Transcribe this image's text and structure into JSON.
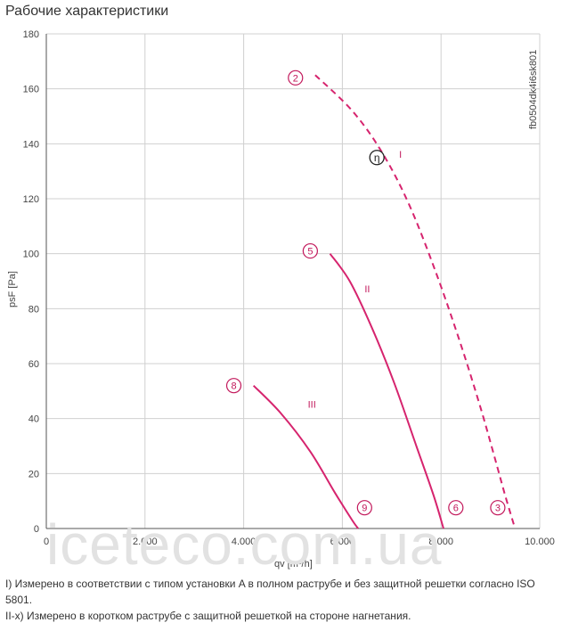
{
  "page_title": "Рабочие характеристики",
  "doc_code": "fb0504dk4i6sk801",
  "watermark": "iceteco.com.ua",
  "notes": [
    "I) Измерено в соответствии с типом установки A в полном раструбе и без защитной решетки согласно ISO 5801.",
    "II-x) Измерено в коротком раструбе с защитной решеткой на стороне нагнетания."
  ],
  "colors": {
    "curve": "#d6246e",
    "marker": "#c2185b",
    "grid": "#d0d0d0",
    "axis": "#555555"
  },
  "chart_data": {
    "type": "line",
    "title": "Рабочие характеристики",
    "xlabel": "qv [m³/h]",
    "ylabel": "psF [Pa]",
    "xlim": [
      0,
      10000
    ],
    "ylim": [
      0,
      180
    ],
    "x_ticks": [
      0,
      2000,
      4000,
      6000,
      8000,
      10000
    ],
    "x_tick_labels": [
      "0",
      "2.000",
      "4.000",
      "6.000",
      "8.000",
      "10.000"
    ],
    "y_ticks": [
      0,
      20,
      40,
      60,
      80,
      100,
      120,
      140,
      160,
      180
    ],
    "y_tick_labels": [
      "0",
      "20",
      "40",
      "60",
      "80",
      "100",
      "120",
      "140",
      "160",
      "180"
    ],
    "grid": true,
    "series": [
      {
        "name": "I",
        "style": "dashed",
        "x": [
          5450,
          6200,
          6800,
          7350,
          7900,
          8400,
          8800,
          9100,
          9300,
          9500
        ],
        "y": [
          165,
          152,
          137,
          118,
          93,
          67,
          44,
          25,
          12,
          0
        ],
        "label_at": [
          7150,
          135
        ],
        "start_marker": "2",
        "end_marker": "3",
        "efficiency_marker": {
          "symbol": "η",
          "x": 6700,
          "y": 135
        }
      },
      {
        "name": "II",
        "style": "solid",
        "x": [
          5750,
          6150,
          6600,
          7050,
          7500,
          7850,
          8050
        ],
        "y": [
          100,
          90,
          73,
          53,
          30,
          12,
          0
        ],
        "label_at": [
          6450,
          86
        ],
        "start_marker": "5",
        "end_marker": "6"
      },
      {
        "name": "III",
        "style": "solid",
        "x": [
          4200,
          4750,
          5350,
          5850,
          6200,
          6320
        ],
        "y": [
          52,
          42,
          28,
          13,
          3,
          0
        ],
        "label_at": [
          5300,
          44
        ],
        "start_marker": "8",
        "end_marker": "9"
      }
    ],
    "markers": [
      {
        "label": "2",
        "x": 5050,
        "y": 164
      },
      {
        "label": "5",
        "x": 5350,
        "y": 101
      },
      {
        "label": "8",
        "x": 3800,
        "y": 52
      },
      {
        "label": "9",
        "x": 6450,
        "y": 4
      },
      {
        "label": "6",
        "x": 8300,
        "y": 4
      },
      {
        "label": "3",
        "x": 9150,
        "y": 4
      }
    ]
  }
}
